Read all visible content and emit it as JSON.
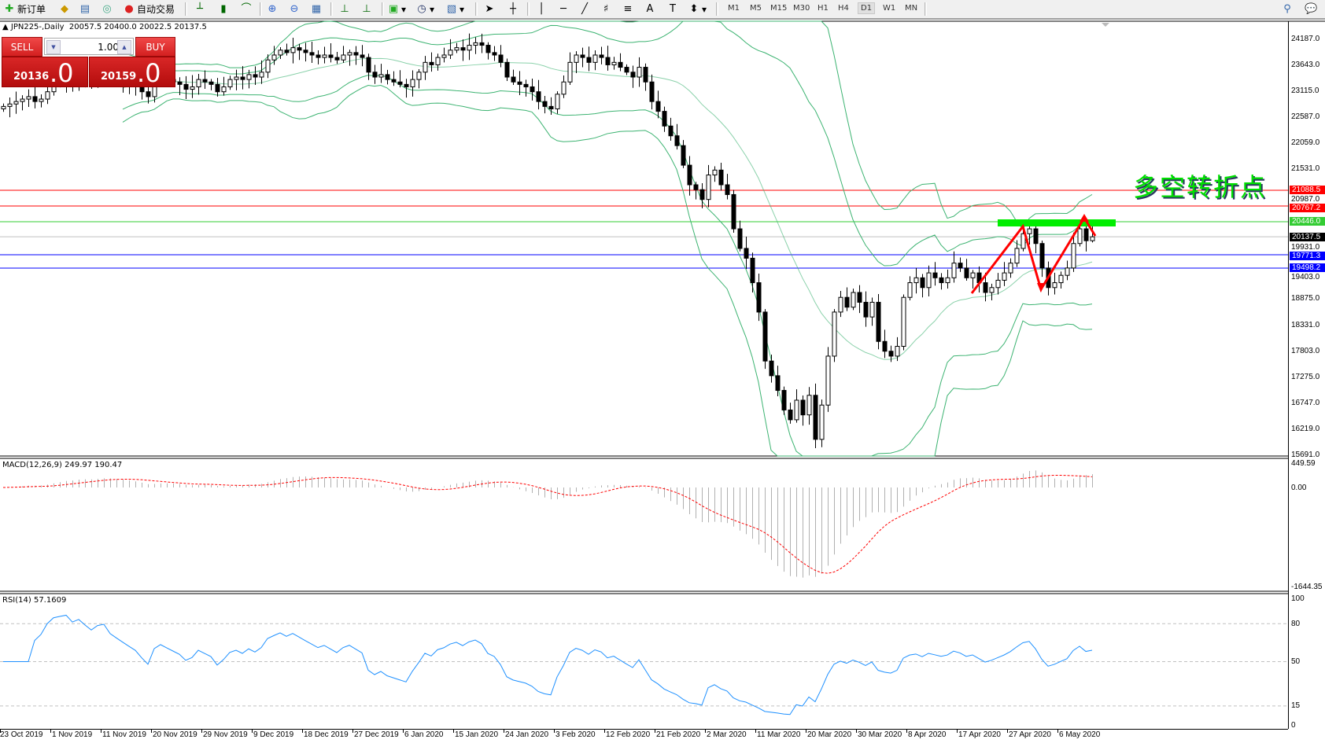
{
  "toolbar": {
    "new_order": "新订单",
    "auto_trading": "自动交易",
    "icons": [
      "new-order-icon",
      "market-watch-icon",
      "navigator-icon",
      "signals-icon",
      "auto-trading-icon",
      "bar-chart-icon",
      "candlestick-icon",
      "line-chart-icon",
      "zoom-in-icon",
      "zoom-out-icon",
      "tile-windows-icon",
      "chart-shift-icon",
      "autoscroll-icon",
      "new-chart-icon",
      "periods-icon",
      "templates-icon",
      "cursor-icon",
      "crosshair-icon",
      "vertical-line-icon",
      "horizontal-line-icon",
      "trendline-icon",
      "fibo-fan-icon",
      "fibo-retracement-icon",
      "text-icon",
      "text-label-icon",
      "arrows-icon",
      "search-icon",
      "chat-icon"
    ],
    "timeframes": [
      "M1",
      "M5",
      "M15",
      "M30",
      "H1",
      "H4",
      "D1",
      "W1",
      "MN"
    ],
    "active_timeframe": "D1"
  },
  "header": {
    "symbol": "JPN225-,Daily",
    "ohlc": "20057.5 20400.0 20022.5 20137.5"
  },
  "trade_panel": {
    "sell_label": "SELL",
    "buy_label": "BUY",
    "lot": "1.00",
    "sell_price_main": "20136",
    "sell_price_pips": ".0",
    "buy_price_main": "20159",
    "buy_price_pips": ".0",
    "color": "#d42020"
  },
  "annotation": {
    "text": "多空转折点",
    "color": "#00e000"
  },
  "chart_data": {
    "type": "candlestick",
    "symbol": "JPN225-",
    "timeframe": "Daily",
    "last_bar": {
      "open": 20057.5,
      "high": 20400.0,
      "low": 20022.5,
      "close": 20137.5
    },
    "closes": [
      22800,
      22850,
      22900,
      22950,
      23000,
      22900,
      22950,
      23100,
      23250,
      23300,
      23350,
      23300,
      23400,
      23350,
      23300,
      23450,
      23500,
      23400,
      23350,
      23300,
      23250,
      23200,
      23100,
      23000,
      23300,
      23400,
      23350,
      23300,
      23250,
      23150,
      23200,
      23350,
      23300,
      23250,
      23100,
      23200,
      23350,
      23400,
      23350,
      23450,
      23400,
      23500,
      23750,
      23850,
      23950,
      23900,
      24000,
      23950,
      23900,
      23850,
      23800,
      23850,
      23800,
      23750,
      23850,
      23900,
      23850,
      23800,
      23500,
      23400,
      23450,
      23350,
      23300,
      23250,
      23200,
      23350,
      23500,
      23700,
      23650,
      23800,
      23850,
      23950,
      24000,
      23950,
      24050,
      24100,
      24050,
      23900,
      23850,
      23700,
      23400,
      23300,
      23250,
      23200,
      23100,
      22900,
      22800,
      22750,
      23050,
      23300,
      23700,
      23850,
      23800,
      23700,
      23850,
      23800,
      23650,
      23700,
      23600,
      23500,
      23400,
      23600,
      23300,
      22900,
      22700,
      22400,
      22200,
      22000,
      21600,
      21200,
      21100,
      20900,
      21400,
      21500,
      21200,
      21000,
      20300,
      19900,
      19700,
      19200,
      18600,
      17600,
      17300,
      17000,
      16600,
      16400,
      16800,
      16500,
      16900,
      16000,
      16700,
      17700,
      18600,
      18900,
      18700,
      19000,
      18800,
      18500,
      18800,
      18000,
      17800,
      17700,
      17900,
      18900,
      19200,
      19300,
      19100,
      19400,
      19300,
      19200,
      19300,
      19600,
      19500,
      19300,
      19400,
      19200,
      19000,
      19100,
      19250,
      19400,
      19600,
      19900,
      20200,
      20300,
      20000,
      19500,
      19100,
      19200,
      19350,
      19500,
      20000,
      20300,
      20057.5,
      20137.5
    ],
    "price_axis": [
      "24187.0",
      "23643.0",
      "23115.0",
      "22587.0",
      "22059.0",
      "21531.0",
      "20987.0",
      "19931.0",
      "19403.0",
      "18875.0",
      "18331.0",
      "17803.0",
      "17275.0",
      "16747.0",
      "16219.0",
      "15691.0"
    ],
    "price_range": [
      15691,
      24187
    ],
    "date_labels": [
      "23 Oct 2019",
      "1 Nov 2019",
      "11 Nov 2019",
      "20 Nov 2019",
      "29 Nov 2019",
      "9 Dec 2019",
      "18 Dec 2019",
      "27 Dec 2019",
      "6 Jan 2020",
      "15 Jan 2020",
      "24 Jan 2020",
      "3 Feb 2020",
      "12 Feb 2020",
      "21 Feb 2020",
      "2 Mar 2020",
      "11 Mar 2020",
      "20 Mar 2020",
      "30 Mar 2020",
      "8 Apr 2020",
      "17 Apr 2020",
      "27 Apr 2020",
      "6 May 2020"
    ],
    "horizontal_lines": [
      {
        "price": "21088.5",
        "color": "#ff0000"
      },
      {
        "price": "20767.2",
        "color": "#ff0000"
      },
      {
        "price": "20446.0",
        "color": "#33cc33"
      },
      {
        "price": "20137.5",
        "color": "#000000",
        "line_color": "#c0c0c0"
      },
      {
        "price": "19771.3",
        "color": "#0000ff"
      },
      {
        "price": "19498.2",
        "color": "#0000ff"
      }
    ],
    "overlays": {
      "bollinger_color": "#3cb371"
    },
    "macd": {
      "label": "MACD(12,26,9) 249.97 190.47",
      "axis": [
        "449.59",
        "0.00",
        "-1644.35"
      ],
      "range": [
        -1644.35,
        449.59
      ],
      "histogram_color": "#b0b0b0",
      "signal_color": "#ff0000"
    },
    "rsi": {
      "label": "RSI(14) 57.1609",
      "axis": [
        "100",
        "80",
        "50",
        "15",
        "0"
      ],
      "levels": [
        80,
        50,
        15
      ],
      "color": "#1e90ff"
    }
  }
}
